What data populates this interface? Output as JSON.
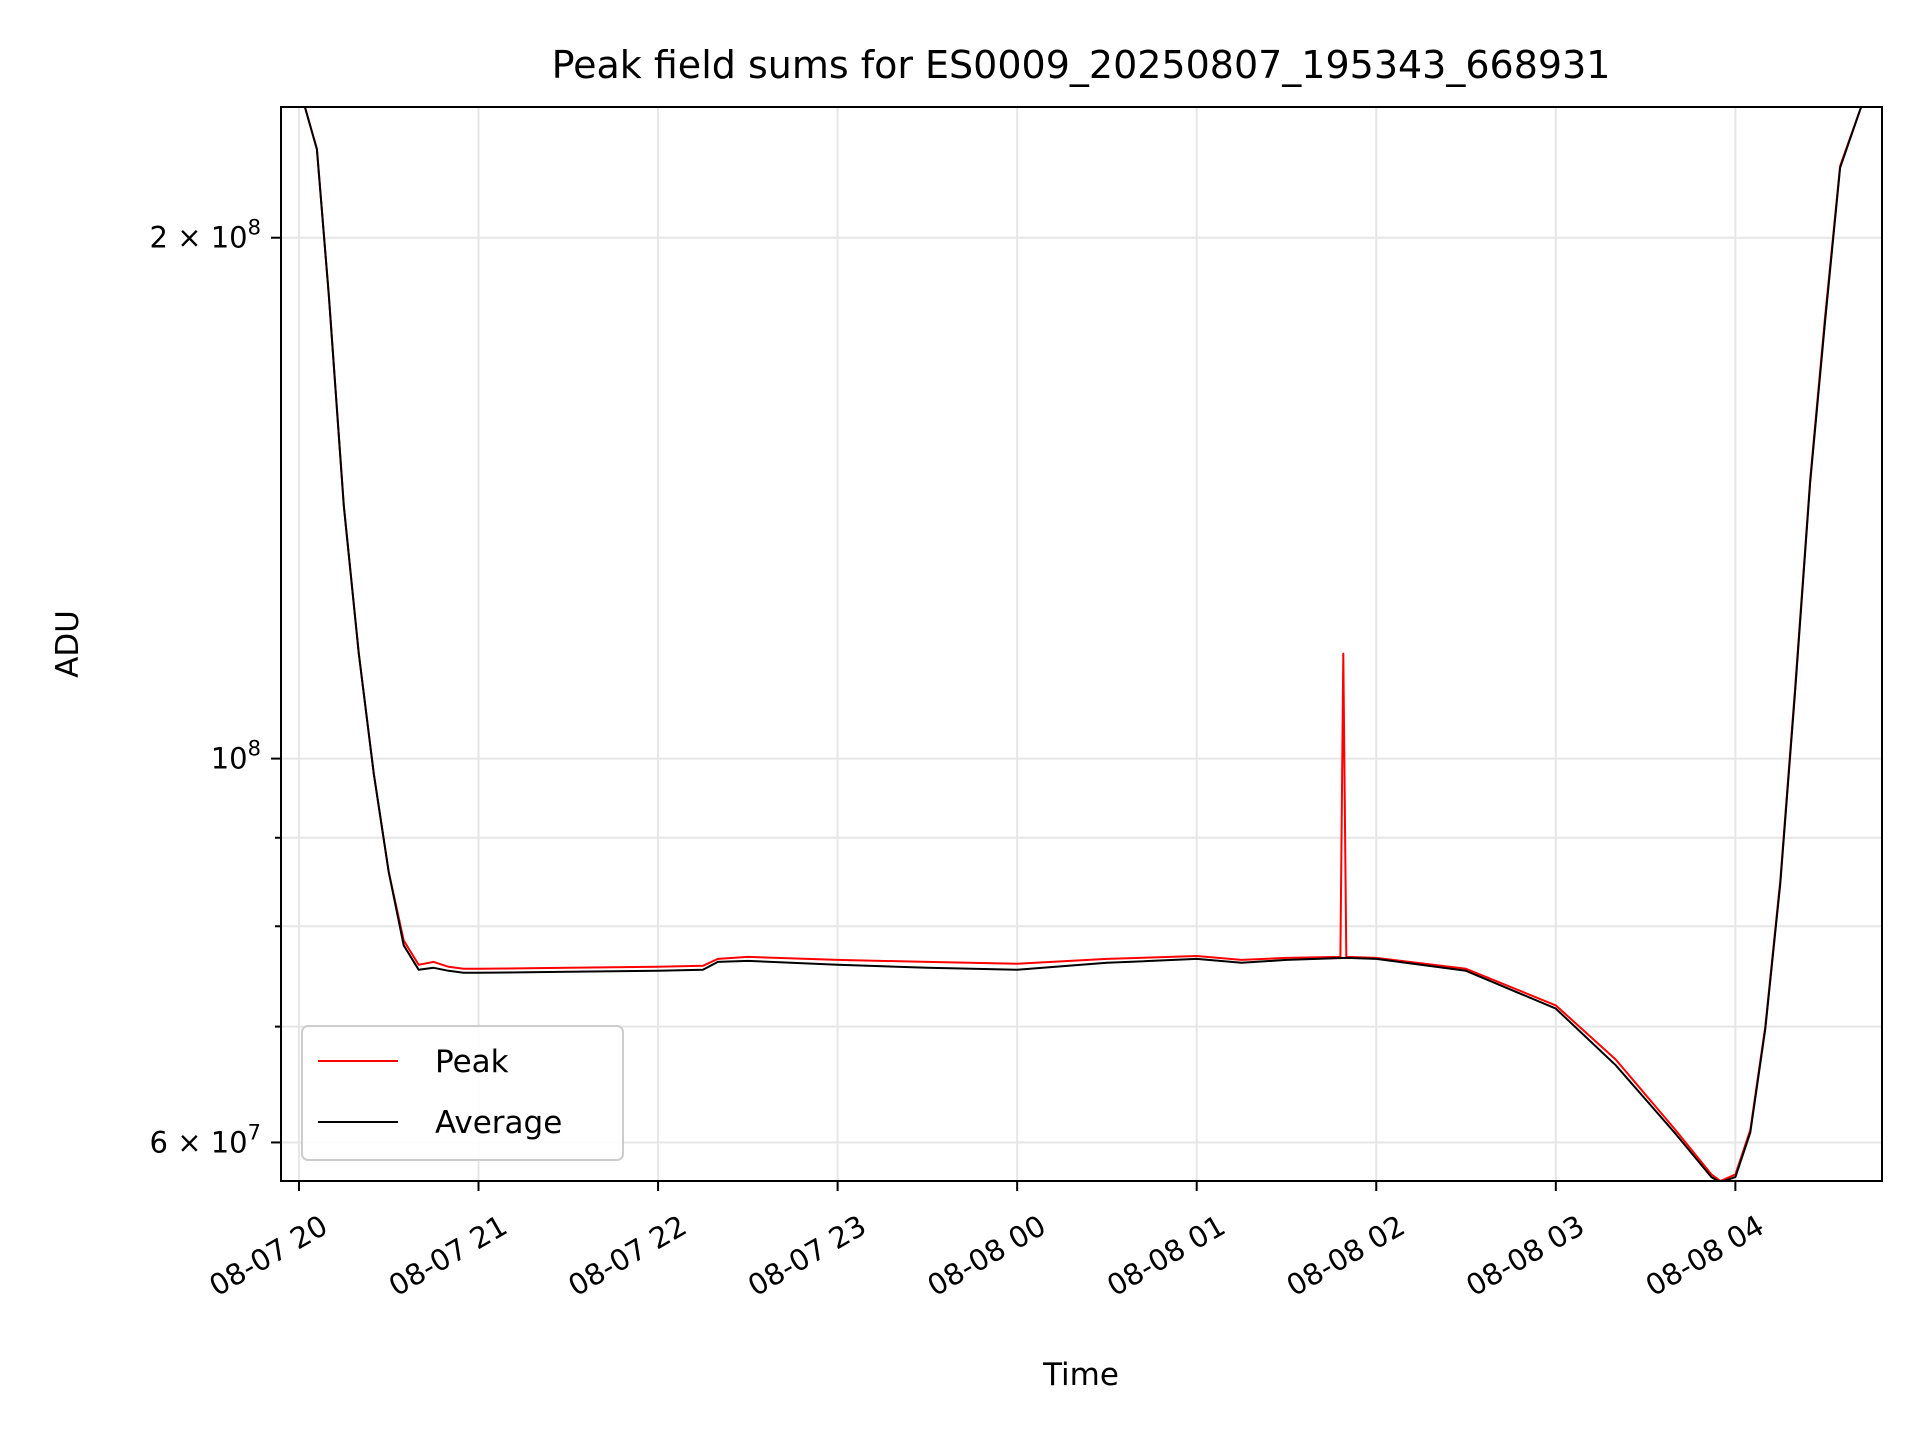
{
  "chart_data": {
    "type": "line",
    "title": "Peak field sums for ES0009_20250807_195343_668931",
    "xlabel": "Time",
    "ylabel": "ADU",
    "y_scale": "log",
    "grid": true,
    "legend_position": "lower-left",
    "xlim": [
      "2025-08-07 19:54",
      "2025-08-08 04:49"
    ],
    "ylim": [
      57000000,
      238000000
    ],
    "x_ticks": [
      "08-07 20",
      "08-07 21",
      "08-07 22",
      "08-07 23",
      "08-08 00",
      "08-08 01",
      "08-08 02",
      "08-08 03",
      "08-08 04"
    ],
    "x_tick_values": [
      "2025-08-07 20:00",
      "2025-08-07 21:00",
      "2025-08-07 22:00",
      "2025-08-07 23:00",
      "2025-08-08 00:00",
      "2025-08-08 01:00",
      "2025-08-08 02:00",
      "2025-08-08 03:00",
      "2025-08-08 04:00"
    ],
    "y_ticks": [
      {
        "value": 200000000,
        "label_base": "2 × 10",
        "label_exp": "8"
      },
      {
        "value": 100000000,
        "label_base": "10",
        "label_exp": "8"
      },
      {
        "value": 60000000,
        "label_base": "6 × 10",
        "label_exp": "7"
      }
    ],
    "y_minor_ticks": [
      70000000,
      80000000,
      90000000
    ],
    "series": [
      {
        "name": "Peak",
        "color": "#ff0000",
        "x": [
          "2025-08-07 19:54",
          "2025-08-07 20:02",
          "2025-08-07 20:06",
          "2025-08-07 20:10",
          "2025-08-07 20:15",
          "2025-08-07 20:20",
          "2025-08-07 20:25",
          "2025-08-07 20:30",
          "2025-08-07 20:35",
          "2025-08-07 20:40",
          "2025-08-07 20:45",
          "2025-08-07 20:50",
          "2025-08-07 20:55",
          "2025-08-07 21:00",
          "2025-08-07 21:30",
          "2025-08-07 22:00",
          "2025-08-07 22:15",
          "2025-08-07 22:20",
          "2025-08-07 22:30",
          "2025-08-07 23:00",
          "2025-08-07 23:30",
          "2025-08-08 00:00",
          "2025-08-08 00:30",
          "2025-08-08 01:00",
          "2025-08-08 01:15",
          "2025-08-08 01:30",
          "2025-08-08 01:48",
          "2025-08-08 01:49",
          "2025-08-08 01:50",
          "2025-08-08 02:00",
          "2025-08-08 02:30",
          "2025-08-08 03:00",
          "2025-08-08 03:20",
          "2025-08-08 03:40",
          "2025-08-08 03:52",
          "2025-08-08 03:55",
          "2025-08-08 04:00",
          "2025-08-08 04:05",
          "2025-08-08 04:10",
          "2025-08-08 04:15",
          "2025-08-08 04:20",
          "2025-08-08 04:25",
          "2025-08-08 04:30",
          "2025-08-08 04:35",
          "2025-08-08 04:42",
          "2025-08-08 04:49"
        ],
        "y": [
          238000000,
          238000000,
          225000000,
          185000000,
          140000000,
          115000000,
          98000000,
          86000000,
          78500000,
          76000000,
          76300000,
          75800000,
          75600000,
          75600000,
          75700000,
          75800000,
          75900000,
          76600000,
          76800000,
          76500000,
          76300000,
          76100000,
          76600000,
          76900000,
          76500000,
          76700000,
          76800000,
          115000000,
          76800000,
          76700000,
          75600000,
          72000000,
          67000000,
          61000000,
          57500000,
          57000000,
          57500000,
          61000000,
          70000000,
          85000000,
          110000000,
          145000000,
          180000000,
          220000000,
          238000000,
          238000000
        ]
      },
      {
        "name": "Average",
        "color": "#000000",
        "x": [
          "2025-08-07 19:54",
          "2025-08-07 20:02",
          "2025-08-07 20:06",
          "2025-08-07 20:10",
          "2025-08-07 20:15",
          "2025-08-07 20:20",
          "2025-08-07 20:25",
          "2025-08-07 20:30",
          "2025-08-07 20:35",
          "2025-08-07 20:40",
          "2025-08-07 20:45",
          "2025-08-07 20:50",
          "2025-08-07 20:55",
          "2025-08-07 21:00",
          "2025-08-07 21:30",
          "2025-08-07 22:00",
          "2025-08-07 22:15",
          "2025-08-07 22:20",
          "2025-08-07 22:30",
          "2025-08-07 23:00",
          "2025-08-07 23:30",
          "2025-08-08 00:00",
          "2025-08-08 00:30",
          "2025-08-08 01:00",
          "2025-08-08 01:15",
          "2025-08-08 01:30",
          "2025-08-08 01:50",
          "2025-08-08 02:00",
          "2025-08-08 02:30",
          "2025-08-08 03:00",
          "2025-08-08 03:20",
          "2025-08-08 03:40",
          "2025-08-08 03:52",
          "2025-08-08 03:55",
          "2025-08-08 04:00",
          "2025-08-08 04:05",
          "2025-08-08 04:10",
          "2025-08-08 04:15",
          "2025-08-08 04:20",
          "2025-08-08 04:25",
          "2025-08-08 04:30",
          "2025-08-08 04:35",
          "2025-08-08 04:42",
          "2025-08-08 04:49"
        ],
        "y": [
          238000000,
          238000000,
          225000000,
          185000000,
          140000000,
          115000000,
          98000000,
          86000000,
          78000000,
          75500000,
          75700000,
          75400000,
          75200000,
          75200000,
          75300000,
          75400000,
          75500000,
          76300000,
          76400000,
          76000000,
          75700000,
          75500000,
          76200000,
          76600000,
          76200000,
          76500000,
          76700000,
          76600000,
          75400000,
          71700000,
          66500000,
          60700000,
          57300000,
          56900000,
          57300000,
          60800000,
          69800000,
          84700000,
          109500000,
          144500000,
          179000000,
          219500000,
          238000000,
          238000000
        ]
      }
    ]
  }
}
